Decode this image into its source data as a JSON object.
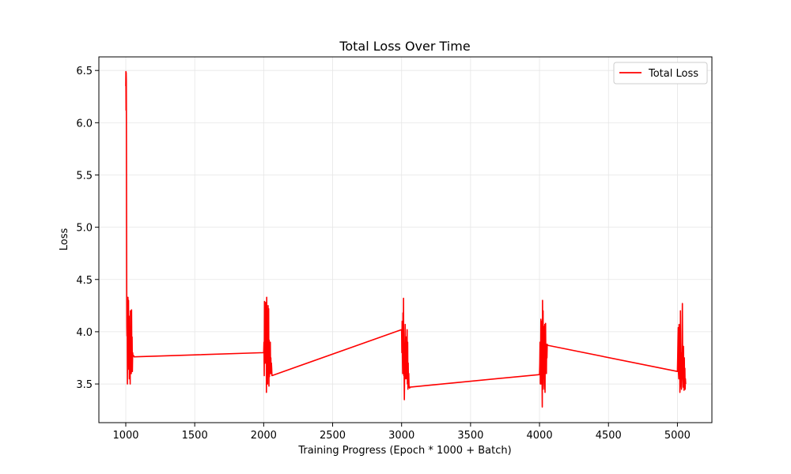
{
  "chart_data": {
    "type": "line",
    "title": "Total Loss Over Time",
    "xlabel": "Training Progress (Epoch * 1000 + Batch)",
    "ylabel": "Loss",
    "xlim": [
      805,
      5250
    ],
    "ylim": [
      3.13,
      6.63
    ],
    "xticks": [
      1000,
      1500,
      2000,
      2500,
      3000,
      3500,
      4000,
      4500,
      5000
    ],
    "yticks": [
      3.5,
      4.0,
      4.5,
      5.0,
      5.5,
      6.0,
      6.5
    ],
    "grid": true,
    "legend": "top-right",
    "colors": {
      "line": "#ff0000",
      "grid": "#e6e6e6",
      "axes": "#000000"
    },
    "series": [
      {
        "name": "Total Loss",
        "color": "#ff0000",
        "x": [
          1000,
          1001,
          1002,
          1003,
          1004,
          1005,
          1006,
          1007,
          1008,
          1009,
          1010,
          1012,
          1014,
          1016,
          1018,
          1020,
          1022,
          1024,
          1026,
          1028,
          1030,
          1032,
          1034,
          1036,
          1038,
          1040,
          1042,
          1044,
          1046,
          1048,
          1050,
          1052,
          1054,
          1056,
          1058,
          1060,
          2000,
          2002,
          2004,
          2006,
          2008,
          2010,
          2012,
          2014,
          2016,
          2018,
          2020,
          2022,
          2024,
          2026,
          2028,
          2030,
          2032,
          2034,
          2036,
          2038,
          2040,
          2042,
          2044,
          2046,
          2048,
          2050,
          2052,
          2054,
          2056,
          2058,
          2060,
          3000,
          3002,
          3004,
          3006,
          3008,
          3010,
          3012,
          3014,
          3016,
          3018,
          3020,
          3022,
          3024,
          3026,
          3028,
          3030,
          3032,
          3034,
          3036,
          3038,
          3040,
          3042,
          3044,
          3046,
          3048,
          3050,
          3052,
          3054,
          3056,
          3058,
          3060,
          4000,
          4002,
          4004,
          4006,
          4008,
          4010,
          4012,
          4014,
          4016,
          4018,
          4020,
          4022,
          4024,
          4026,
          4028,
          4030,
          4032,
          4034,
          4036,
          4038,
          4040,
          4042,
          4044,
          4046,
          4048,
          4050,
          4052,
          4054,
          4056,
          4058,
          4060,
          5000,
          5002,
          5004,
          5006,
          5008,
          5010,
          5012,
          5014,
          5016,
          5018,
          5020,
          5022,
          5024,
          5026,
          5028,
          5030,
          5032,
          5034,
          5036,
          5038,
          5040,
          5042,
          5044,
          5046,
          5048,
          5050,
          5052,
          5054,
          5056,
          5058,
          5060
        ],
        "y": [
          6.35,
          6.49,
          6.12,
          6.48,
          6.4,
          5.8,
          5.0,
          4.4,
          4.05,
          3.96,
          4.3,
          3.5,
          4.1,
          4.33,
          3.7,
          4.3,
          3.64,
          4.15,
          3.55,
          4.05,
          3.8,
          3.5,
          4.2,
          3.65,
          4.1,
          3.6,
          4.21,
          3.75,
          3.95,
          3.62,
          3.8,
          3.77,
          3.77,
          3.77,
          3.77,
          3.76,
          3.8,
          3.9,
          3.58,
          4.29,
          3.85,
          3.9,
          3.7,
          4.28,
          3.7,
          4.25,
          3.42,
          4.33,
          3.55,
          4.2,
          3.5,
          3.95,
          4.25,
          3.6,
          4.22,
          3.48,
          3.92,
          3.57,
          3.8,
          3.6,
          3.9,
          3.65,
          3.75,
          3.6,
          3.7,
          3.65,
          3.58,
          4.02,
          3.8,
          4.1,
          3.75,
          3.6,
          4.18,
          3.7,
          4.32,
          3.58,
          3.7,
          3.35,
          3.6,
          3.85,
          4.07,
          3.7,
          3.55,
          3.95,
          3.9,
          3.6,
          3.55,
          4.02,
          3.5,
          3.9,
          3.45,
          3.7,
          3.47,
          3.6,
          3.48,
          3.47,
          3.46,
          3.47,
          3.59,
          3.7,
          3.9,
          3.5,
          3.65,
          4.12,
          3.5,
          3.95,
          4.1,
          3.6,
          3.28,
          4.3,
          3.45,
          4.2,
          3.55,
          3.65,
          4.05,
          3.5,
          3.45,
          4.07,
          3.42,
          3.9,
          4.08,
          3.7,
          3.87,
          3.6,
          3.88,
          3.75,
          3.88,
          3.87,
          3.87,
          3.62,
          3.75,
          3.9,
          4.04,
          3.6,
          3.55,
          4.07,
          3.85,
          3.95,
          3.42,
          3.5,
          4.2,
          3.6,
          3.8,
          3.5,
          3.45,
          3.7,
          3.9,
          4.27,
          3.7,
          3.55,
          3.47,
          3.86,
          3.6,
          3.44,
          3.75,
          3.5,
          3.65,
          3.45,
          3.55,
          3.5
        ]
      }
    ]
  }
}
